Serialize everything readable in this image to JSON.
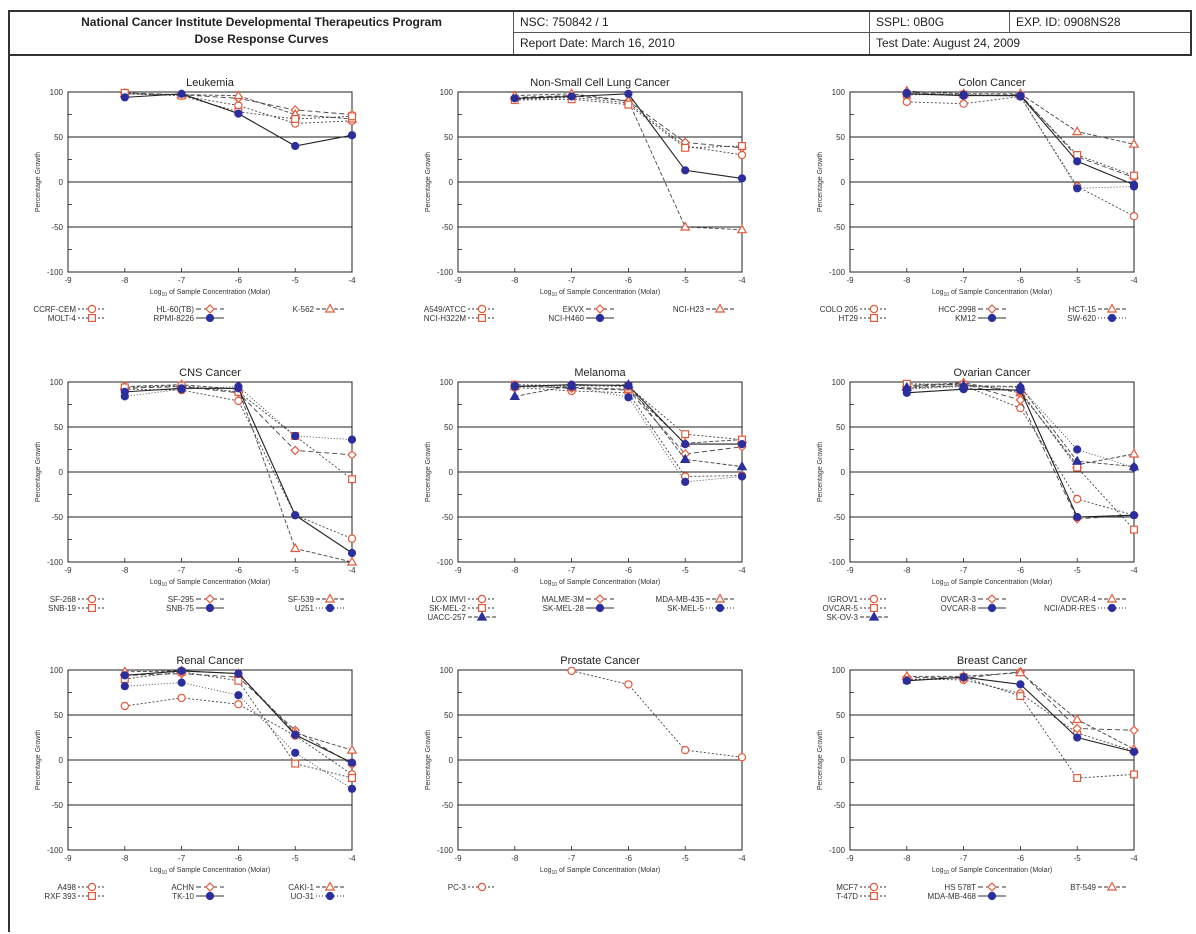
{
  "header": {
    "title_line1": "National Cancer Institute Developmental Therapeutics Program",
    "title_line2": "Dose Response Curves",
    "nsc": "NSC: 750842 / 1",
    "report_date": "Report Date: March 16, 2010",
    "sspl": "SSPL: 0B0G",
    "exp_id": "EXP. ID: 0908NS28",
    "test_date": "Test Date: August 24, 2009"
  },
  "colors": {
    "orange": "#e25a3a",
    "blue": "#2b2f9e",
    "dark": "#333333"
  },
  "axis_text": {
    "xlabel_pre": "Log",
    "xlabel_sub": "10",
    "xlabel_post": " of Sample Concentration (Molar)",
    "ylabel": "Percentage Growth"
  },
  "chart_data": [
    {
      "type": "line",
      "title": "Leukemia",
      "x": [
        -8,
        -7,
        -6,
        -5,
        -4
      ],
      "xlim": [
        -9,
        -4
      ],
      "ylim": [
        -100,
        100
      ],
      "xticks": [
        -9,
        -8,
        -7,
        -6,
        -5,
        -4
      ],
      "yticks": [
        100,
        50,
        0,
        -50,
        -100
      ],
      "series": [
        {
          "name": "CCRF-CEM",
          "values": [
            98,
            96,
            85,
            65,
            68
          ],
          "color": "#e25a3a",
          "marker": "circle",
          "dash": "2,2"
        },
        {
          "name": "HL-60(TB)",
          "values": [
            99,
            97,
            93,
            80,
            75
          ],
          "color": "#e25a3a",
          "marker": "diamond",
          "dash": "5,3"
        },
        {
          "name": "K-562",
          "values": [
            98,
            97,
            96,
            75,
            70
          ],
          "color": "#e25a3a",
          "marker": "triangle",
          "dash": "4,2"
        },
        {
          "name": "MOLT-4",
          "values": [
            99,
            96,
            78,
            70,
            73
          ],
          "color": "#e25a3a",
          "marker": "square",
          "dash": "2,2"
        },
        {
          "name": "RPMI-8226",
          "values": [
            94,
            98,
            76,
            40,
            52
          ],
          "color": "#2b2f9e",
          "marker": "circle",
          "dash": ""
        }
      ]
    },
    {
      "type": "line",
      "title": "Non-Small Cell Lung Cancer",
      "x": [
        -8,
        -7,
        -6,
        -5,
        -4
      ],
      "xlim": [
        -9,
        -4
      ],
      "ylim": [
        -100,
        100
      ],
      "xticks": [
        -9,
        -8,
        -7,
        -6,
        -5,
        -4
      ],
      "yticks": [
        100,
        50,
        0,
        -50,
        -100
      ],
      "series": [
        {
          "name": "A549/ATCC",
          "values": [
            92,
            94,
            88,
            40,
            30
          ],
          "color": "#e25a3a",
          "marker": "circle",
          "dash": "2,2"
        },
        {
          "name": "EKVX",
          "values": [
            94,
            96,
            90,
            44,
            38
          ],
          "color": "#e25a3a",
          "marker": "diamond",
          "dash": "5,3"
        },
        {
          "name": "NCI-H23",
          "values": [
            96,
            98,
            90,
            -50,
            -53
          ],
          "color": "#e25a3a",
          "marker": "triangle",
          "dash": "4,2"
        },
        {
          "name": "NCI-H322M",
          "values": [
            91,
            92,
            86,
            38,
            40
          ],
          "color": "#e25a3a",
          "marker": "square",
          "dash": "2,2"
        },
        {
          "name": "NCI-H460",
          "values": [
            93,
            95,
            98,
            13,
            4
          ],
          "color": "#2b2f9e",
          "marker": "circle",
          "dash": ""
        }
      ]
    },
    {
      "type": "line",
      "title": "Colon Cancer",
      "x": [
        -8,
        -7,
        -6,
        -5,
        -4
      ],
      "xlim": [
        -9,
        -4
      ],
      "ylim": [
        -100,
        100
      ],
      "xticks": [
        -9,
        -8,
        -7,
        -6,
        -5,
        -4
      ],
      "yticks": [
        100,
        50,
        0,
        -50,
        -100
      ],
      "series": [
        {
          "name": "COLO 205",
          "values": [
            89,
            87,
            95,
            -5,
            -38
          ],
          "color": "#e25a3a",
          "marker": "circle",
          "dash": "2,2"
        },
        {
          "name": "HCC-2998",
          "values": [
            100,
            96,
            97,
            28,
            5
          ],
          "color": "#e25a3a",
          "marker": "diamond",
          "dash": "5,3"
        },
        {
          "name": "HCT-15",
          "values": [
            101,
            98,
            98,
            56,
            42
          ],
          "color": "#e25a3a",
          "marker": "triangle",
          "dash": "4,2"
        },
        {
          "name": "HT29",
          "values": [
            97,
            97,
            96,
            30,
            7
          ],
          "color": "#e25a3a",
          "marker": "square",
          "dash": "2,2"
        },
        {
          "name": "KM12",
          "values": [
            98,
            96,
            96,
            23,
            -3
          ],
          "color": "#2b2f9e",
          "marker": "circle",
          "dash": ""
        },
        {
          "name": "SW-620",
          "values": [
            99,
            97,
            95,
            -7,
            -5
          ],
          "color": "#2b2f9e",
          "marker": "circle",
          "dash": "1,2"
        }
      ]
    },
    {
      "type": "line",
      "title": "CNS Cancer",
      "x": [
        -8,
        -7,
        -6,
        -5,
        -4
      ],
      "xlim": [
        -9,
        -4
      ],
      "ylim": [
        -100,
        100
      ],
      "xticks": [
        -9,
        -8,
        -7,
        -6,
        -5,
        -4
      ],
      "yticks": [
        100,
        50,
        0,
        -50,
        -100
      ],
      "series": [
        {
          "name": "SF-268",
          "values": [
            92,
            91,
            79,
            -48,
            -74
          ],
          "color": "#e25a3a",
          "marker": "circle",
          "dash": "2,2"
        },
        {
          "name": "SF-295",
          "values": [
            93,
            95,
            88,
            24,
            19
          ],
          "color": "#e25a3a",
          "marker": "diamond",
          "dash": "5,3"
        },
        {
          "name": "SF-539",
          "values": [
            95,
            97,
            92,
            -85,
            -100
          ],
          "color": "#e25a3a",
          "marker": "triangle",
          "dash": "4,2"
        },
        {
          "name": "SNB-19",
          "values": [
            94,
            96,
            89,
            40,
            -8
          ],
          "color": "#e25a3a",
          "marker": "square",
          "dash": "2,2"
        },
        {
          "name": "SNB-75",
          "values": [
            89,
            93,
            93,
            -48,
            -90
          ],
          "color": "#2b2f9e",
          "marker": "circle",
          "dash": ""
        },
        {
          "name": "U251",
          "values": [
            84,
            92,
            95,
            40,
            36
          ],
          "color": "#2b2f9e",
          "marker": "circle",
          "dash": "1,2"
        }
      ]
    },
    {
      "type": "line",
      "title": "Melanoma",
      "x": [
        -8,
        -7,
        -6,
        -5,
        -4
      ],
      "xlim": [
        -9,
        -4
      ],
      "ylim": [
        -100,
        100
      ],
      "xticks": [
        -9,
        -8,
        -7,
        -6,
        -5,
        -4
      ],
      "yticks": [
        100,
        50,
        0,
        -50,
        -100
      ],
      "series": [
        {
          "name": "LOX IMVI",
          "values": [
            94,
            90,
            88,
            -5,
            -4
          ],
          "color": "#e25a3a",
          "marker": "circle",
          "dash": "2,2"
        },
        {
          "name": "MALME-3M",
          "values": [
            96,
            93,
            91,
            20,
            28
          ],
          "color": "#e25a3a",
          "marker": "diamond",
          "dash": "5,3"
        },
        {
          "name": "MDA-MB-435",
          "values": [
            95,
            94,
            92,
            32,
            36
          ],
          "color": "#e25a3a",
          "marker": "triangle",
          "dash": "4,2"
        },
        {
          "name": "SK-MEL-2",
          "values": [
            97,
            96,
            95,
            42,
            36
          ],
          "color": "#e25a3a",
          "marker": "square",
          "dash": "2,2"
        },
        {
          "name": "SK-MEL-28",
          "values": [
            95,
            97,
            96,
            31,
            31
          ],
          "color": "#2b2f9e",
          "marker": "circle",
          "dash": ""
        },
        {
          "name": "SK-MEL-5",
          "values": [
            96,
            95,
            83,
            -11,
            -5
          ],
          "color": "#2b2f9e",
          "marker": "circle",
          "dash": "1,2"
        },
        {
          "name": "UACC-257",
          "values": [
            84,
            96,
            97,
            14,
            6
          ],
          "color": "#2b2f9e",
          "marker": "triangle",
          "dash": "4,2"
        }
      ]
    },
    {
      "type": "line",
      "title": "Ovarian Cancer",
      "x": [
        -8,
        -7,
        -6,
        -5,
        -4
      ],
      "xlim": [
        -9,
        -4
      ],
      "ylim": [
        -100,
        100
      ],
      "xticks": [
        -9,
        -8,
        -7,
        -6,
        -5,
        -4
      ],
      "yticks": [
        100,
        50,
        0,
        -50,
        -100
      ],
      "series": [
        {
          "name": "IGROV1",
          "values": [
            93,
            96,
            71,
            -30,
            -48
          ],
          "color": "#e25a3a",
          "marker": "circle",
          "dash": "2,2"
        },
        {
          "name": "OVCAR-3",
          "values": [
            95,
            98,
            80,
            -52,
            -48
          ],
          "color": "#e25a3a",
          "marker": "diamond",
          "dash": "5,3"
        },
        {
          "name": "OVCAR-4",
          "values": [
            96,
            99,
            88,
            8,
            20
          ],
          "color": "#e25a3a",
          "marker": "triangle",
          "dash": "4,2"
        },
        {
          "name": "OVCAR-5",
          "values": [
            98,
            97,
            90,
            5,
            -64
          ],
          "color": "#e25a3a",
          "marker": "square",
          "dash": "2,2"
        },
        {
          "name": "OVCAR-8",
          "values": [
            88,
            92,
            91,
            -50,
            -48
          ],
          "color": "#2b2f9e",
          "marker": "circle",
          "dash": ""
        },
        {
          "name": "NCI/ADR-RES",
          "values": [
            92,
            95,
            94,
            25,
            5
          ],
          "color": "#2b2f9e",
          "marker": "circle",
          "dash": "1,2"
        },
        {
          "name": "SK-OV-3",
          "values": [
            94,
            96,
            95,
            12,
            6
          ],
          "color": "#2b2f9e",
          "marker": "triangle",
          "dash": "4,2"
        }
      ]
    },
    {
      "type": "line",
      "title": "Renal Cancer",
      "x": [
        -8,
        -7,
        -6,
        -5,
        -4
      ],
      "xlim": [
        -9,
        -4
      ],
      "ylim": [
        -100,
        100
      ],
      "xticks": [
        -9,
        -8,
        -7,
        -6,
        -5,
        -4
      ],
      "yticks": [
        100,
        50,
        0,
        -50,
        -100
      ],
      "series": [
        {
          "name": "A498",
          "values": [
            60,
            69,
            62,
            27,
            -16
          ],
          "color": "#e25a3a",
          "marker": "circle",
          "dash": "2,2"
        },
        {
          "name": "ACHN",
          "values": [
            94,
            96,
            92,
            33,
            -5
          ],
          "color": "#e25a3a",
          "marker": "diamond",
          "dash": "5,3"
        },
        {
          "name": "CAKI-1",
          "values": [
            98,
            99,
            96,
            30,
            11
          ],
          "color": "#e25a3a",
          "marker": "triangle",
          "dash": "4,2"
        },
        {
          "name": "RXF 393",
          "values": [
            90,
            98,
            88,
            -4,
            -20
          ],
          "color": "#e25a3a",
          "marker": "square",
          "dash": "2,2"
        },
        {
          "name": "TK-10",
          "values": [
            94,
            99,
            96,
            28,
            -3
          ],
          "color": "#2b2f9e",
          "marker": "circle",
          "dash": ""
        },
        {
          "name": "UO-31",
          "values": [
            82,
            86,
            72,
            8,
            -32
          ],
          "color": "#2b2f9e",
          "marker": "circle",
          "dash": "1,2"
        }
      ]
    },
    {
      "type": "line",
      "title": "Prostate Cancer",
      "x": [
        -7,
        -6,
        -5,
        -4
      ],
      "xlim": [
        -9,
        -4
      ],
      "ylim": [
        -100,
        100
      ],
      "xticks": [
        -9,
        -8,
        -7,
        -6,
        -5,
        -4
      ],
      "yticks": [
        100,
        50,
        0,
        -50,
        -100
      ],
      "series": [
        {
          "name": "PC-3",
          "values": [
            99,
            84,
            11,
            3
          ],
          "color": "#e25a3a",
          "marker": "circle",
          "dash": "2,2"
        }
      ]
    },
    {
      "type": "line",
      "title": "Breast Cancer",
      "x": [
        -8,
        -7,
        -6,
        -5,
        -4
      ],
      "xlim": [
        -9,
        -4
      ],
      "ylim": [
        -100,
        100
      ],
      "xticks": [
        -9,
        -8,
        -7,
        -6,
        -5,
        -4
      ],
      "yticks": [
        100,
        50,
        0,
        -50,
        -100
      ],
      "series": [
        {
          "name": "MCF7",
          "values": [
            90,
            89,
            74,
            30,
            10
          ],
          "color": "#e25a3a",
          "marker": "circle",
          "dash": "2,2"
        },
        {
          "name": "HS 578T",
          "values": [
            92,
            91,
            98,
            35,
            33
          ],
          "color": "#e25a3a",
          "marker": "diamond",
          "dash": "5,3"
        },
        {
          "name": "BT-549",
          "values": [
            93,
            93,
            97,
            45,
            12
          ],
          "color": "#e25a3a",
          "marker": "triangle",
          "dash": "4,2"
        },
        {
          "name": "T-47D",
          "values": [
            89,
            92,
            71,
            -20,
            -16
          ],
          "color": "#e25a3a",
          "marker": "square",
          "dash": "2,2"
        },
        {
          "name": "MDA-MB-468",
          "values": [
            88,
            92,
            84,
            25,
            9
          ],
          "color": "#2b2f9e",
          "marker": "circle",
          "dash": ""
        }
      ]
    }
  ]
}
